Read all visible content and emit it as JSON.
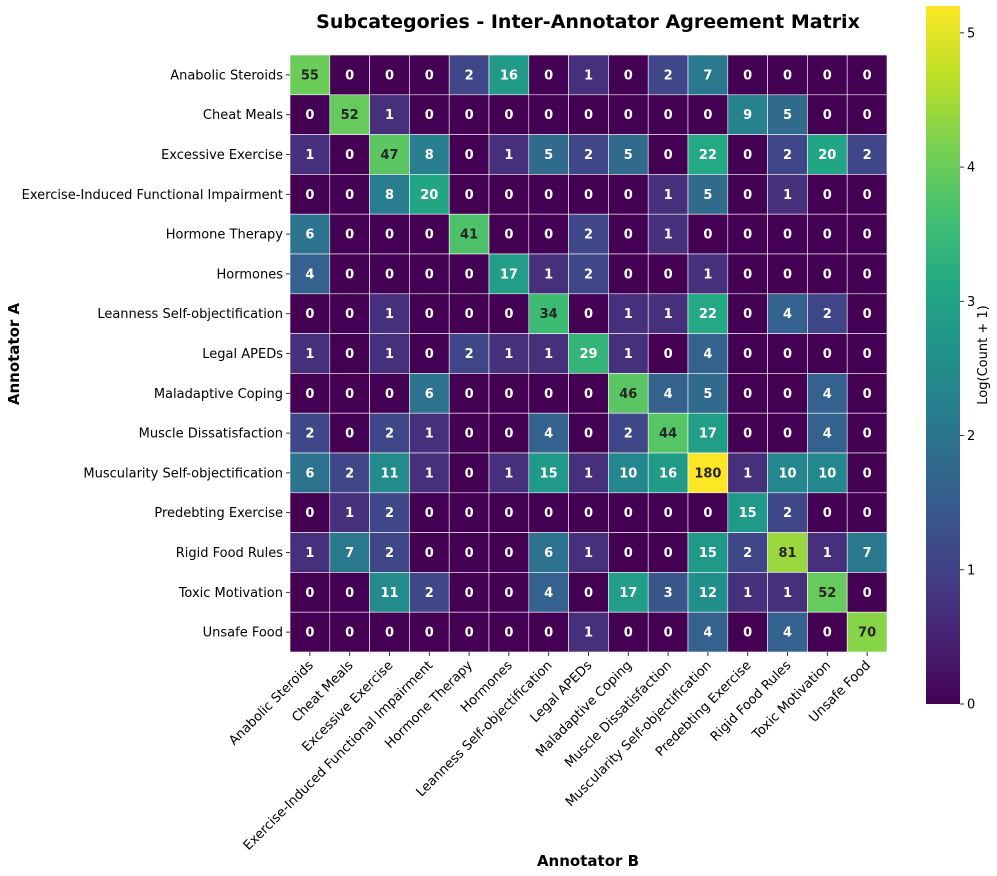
{
  "chart_data": {
    "type": "heatmap",
    "title": "Subcategories - Inter-Annotator Agreement Matrix",
    "xlabel": "Annotator B",
    "ylabel": "Annotator A",
    "colorbar_label": "Log(Count + 1)",
    "colorbar_range": [
      0,
      5.2
    ],
    "colorbar_ticks": [
      0,
      1,
      2,
      3,
      4,
      5
    ],
    "colormap": "viridis",
    "rows": [
      "Anabolic Steroids",
      "Cheat Meals",
      "Excessive Exercise",
      "Exercise-Induced Functional Impairment",
      "Hormone Therapy",
      "Hormones",
      "Leanness Self-objectification",
      "Legal APEDs",
      "Maladaptive Coping",
      "Muscle Dissatisfaction",
      "Muscularity Self-objectification",
      "Predebting Exercise",
      "Rigid Food Rules",
      "Toxic Motivation",
      "Unsafe Food"
    ],
    "columns": [
      "Anabolic Steroids",
      "Cheat Meals",
      "Excessive Exercise",
      "Exercise-Induced Functional Impairment",
      "Hormone Therapy",
      "Hormones",
      "Leanness Self-objectification",
      "Legal APEDs",
      "Maladaptive Coping",
      "Muscle Dissatisfaction",
      "Muscularity Self-objectification",
      "Predebting Exercise",
      "Rigid Food Rules",
      "Toxic Motivation",
      "Unsafe Food"
    ],
    "values": [
      [
        55,
        0,
        0,
        0,
        2,
        16,
        0,
        1,
        0,
        2,
        7,
        0,
        0,
        0,
        0
      ],
      [
        0,
        52,
        1,
        0,
        0,
        0,
        0,
        0,
        0,
        0,
        0,
        9,
        5,
        0,
        0
      ],
      [
        1,
        0,
        47,
        8,
        0,
        1,
        5,
        2,
        5,
        0,
        22,
        0,
        2,
        20,
        2
      ],
      [
        0,
        0,
        8,
        20,
        0,
        0,
        0,
        0,
        0,
        1,
        5,
        0,
        1,
        0,
        0
      ],
      [
        6,
        0,
        0,
        0,
        41,
        0,
        0,
        2,
        0,
        1,
        0,
        0,
        0,
        0,
        0
      ],
      [
        4,
        0,
        0,
        0,
        0,
        17,
        1,
        2,
        0,
        0,
        1,
        0,
        0,
        0,
        0
      ],
      [
        0,
        0,
        1,
        0,
        0,
        0,
        34,
        0,
        1,
        1,
        22,
        0,
        4,
        2,
        0
      ],
      [
        1,
        0,
        1,
        0,
        2,
        1,
        1,
        29,
        1,
        0,
        4,
        0,
        0,
        0,
        0
      ],
      [
        0,
        0,
        0,
        6,
        0,
        0,
        0,
        0,
        46,
        4,
        5,
        0,
        0,
        4,
        0
      ],
      [
        2,
        0,
        2,
        1,
        0,
        0,
        4,
        0,
        2,
        44,
        17,
        0,
        0,
        4,
        0
      ],
      [
        6,
        2,
        11,
        1,
        0,
        1,
        15,
        1,
        10,
        16,
        180,
        1,
        10,
        10,
        0
      ],
      [
        0,
        1,
        2,
        0,
        0,
        0,
        0,
        0,
        0,
        0,
        0,
        15,
        2,
        0,
        0
      ],
      [
        1,
        7,
        2,
        0,
        0,
        0,
        6,
        1,
        0,
        0,
        15,
        2,
        81,
        1,
        7
      ],
      [
        0,
        0,
        11,
        2,
        0,
        0,
        4,
        0,
        17,
        3,
        12,
        1,
        1,
        52,
        0
      ],
      [
        0,
        0,
        0,
        0,
        0,
        0,
        0,
        1,
        0,
        0,
        4,
        0,
        4,
        0,
        70
      ]
    ]
  }
}
